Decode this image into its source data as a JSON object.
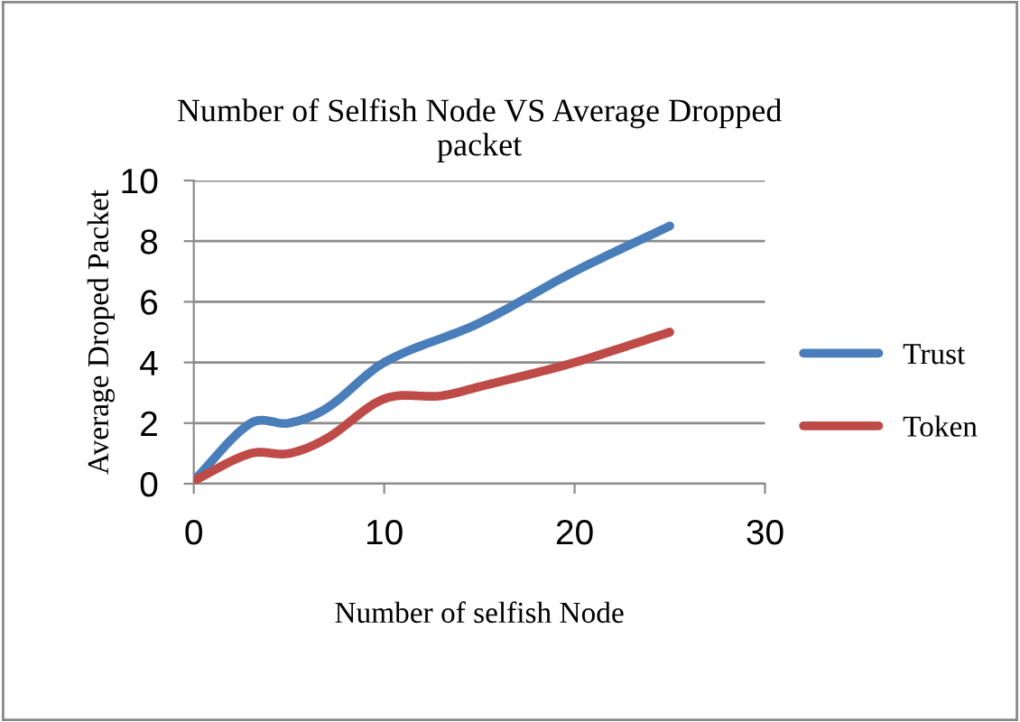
{
  "chart_data": {
    "type": "line",
    "title": "Number of Selfish Node VS Average Dropped\npacket",
    "xlabel": "Number of selfish Node",
    "ylabel": "Average Droped Packet",
    "series": [
      {
        "name": "Trust",
        "color": "#4a7ebb",
        "x": [
          0,
          3,
          5,
          7,
          10,
          15,
          20,
          25
        ],
        "values": [
          0.1,
          2,
          2,
          2.5,
          4,
          5.3,
          7,
          8.5
        ]
      },
      {
        "name": "Token",
        "color": "#be4b48",
        "x": [
          0,
          3,
          5,
          7,
          10,
          13,
          15,
          20,
          25
        ],
        "values": [
          0.1,
          1,
          1,
          1.5,
          2.8,
          2.9,
          3.2,
          4,
          5
        ]
      }
    ],
    "xlim": [
      0,
      30
    ],
    "xticks": [
      0,
      10,
      20,
      30
    ],
    "ylim": [
      0,
      10
    ],
    "yticks": [
      0,
      2,
      4,
      6,
      8,
      10
    ],
    "grid": "y",
    "legend": "right",
    "marker": "none",
    "line_style": "solid"
  }
}
